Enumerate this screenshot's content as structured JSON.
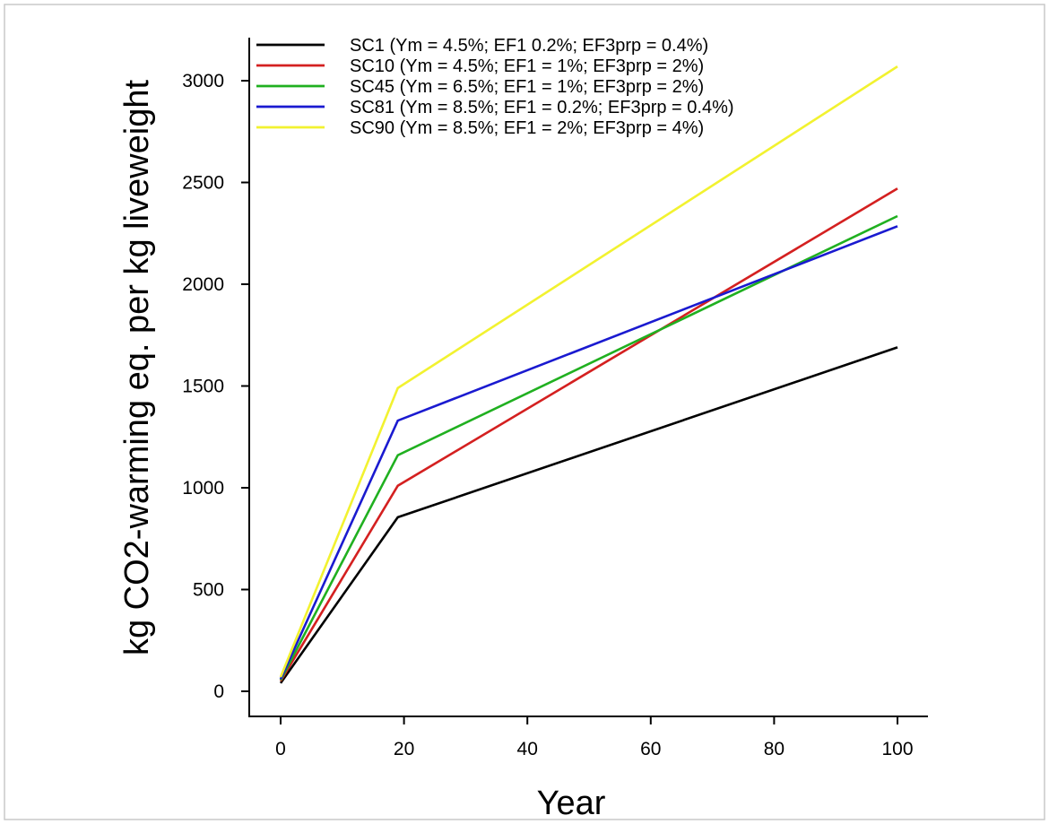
{
  "chart_data": {
    "type": "line",
    "title": "",
    "xlabel": "Year",
    "ylabel": "kg CO2-warming eq. per kg liveweight",
    "xlim": [
      0,
      100
    ],
    "ylim": [
      0,
      3000
    ],
    "x_ticks": [
      0,
      20,
      40,
      60,
      80,
      100
    ],
    "y_ticks": [
      0,
      500,
      1000,
      1500,
      2000,
      2500,
      3000
    ],
    "grid": false,
    "legend_position": "top",
    "x": [
      0,
      19,
      100
    ],
    "series": [
      {
        "name": "SC1 (Ym = 4.5%; EF1  0.2%; EF3prp = 0.4%)",
        "color": "#000000",
        "values": [
          40,
          855,
          1690
        ]
      },
      {
        "name": "SC10 (Ym = 4.5%; EF1 = 1%; EF3prp = 2%)",
        "color": "#d42020",
        "values": [
          50,
          1010,
          2470
        ]
      },
      {
        "name": "SC45 (Ym = 6.5%; EF1 = 1%; EF3prp = 2%)",
        "color": "#20b020",
        "values": [
          55,
          1160,
          2335
        ]
      },
      {
        "name": "SC81 (Ym = 8.5%; EF1 = 0.2%; EF3prp = 0.4%)",
        "color": "#1a1ad0",
        "values": [
          60,
          1330,
          2285
        ]
      },
      {
        "name": "SC90 (Ym = 8.5%; EF1 = 2%; EF3prp = 4%)",
        "color": "#f2f230",
        "values": [
          70,
          1490,
          3070
        ]
      }
    ]
  }
}
